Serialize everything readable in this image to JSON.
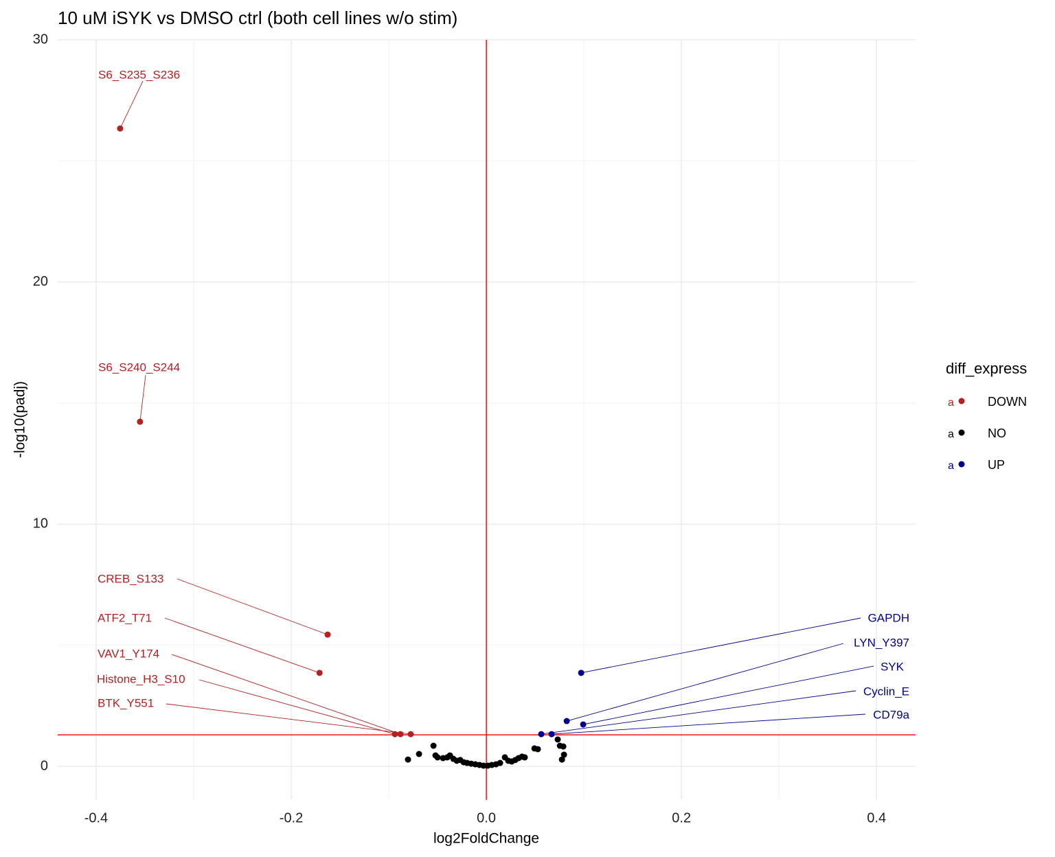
{
  "chart_data": {
    "type": "scatter",
    "title": "10 uM iSYK vs DMSO ctrl (both cell lines w/o stim)",
    "x_label": "log2FoldChange",
    "y_label": "-log10(padj)",
    "xlim": [
      -0.4394,
      0.44
    ],
    "ylim": [
      -1.39,
      30
    ],
    "xticks": [
      -0.4,
      -0.2,
      {
        "value": 0,
        "label": "0.0"
      },
      0.2,
      0.4
    ],
    "yticks": [
      0,
      10,
      20,
      30
    ],
    "x_minor_ticks": [
      -0.3,
      -0.1,
      0.1,
      0.3
    ],
    "y_minor_ticks": [
      5,
      15,
      25
    ],
    "grid": true,
    "hline": 1.3,
    "vline": 0,
    "threshold_color": "#e8141c",
    "legend_title": "diff_express",
    "legend_key_label": "a",
    "legend_position": "right",
    "series": [
      {
        "name": "DOWN",
        "color": "#b22222",
        "x": [
          -0.3754,
          -0.355,
          -0.1627,
          -0.171,
          -0.088,
          -0.0937,
          -0.0775
        ],
        "values": [
          26.34,
          14.23,
          5.44,
          3.86,
          1.33,
          1.33,
          1.33
        ],
        "labels": [
          "S6_S235_S236",
          "S6_S240_S244",
          "CREB_S133",
          "ATF2_T71",
          "VAV1_Y174",
          "Histone_H3_S10",
          "BTK_Y551"
        ]
      },
      {
        "name": "NO",
        "color": "#000000",
        "x": [
          -0.0542,
          -0.069,
          -0.0803,
          -0.0521,
          -0.05,
          -0.0444,
          -0.0401,
          -0.0373,
          -0.0338,
          -0.0303,
          -0.0268,
          -0.0232,
          -0.0197,
          -0.0155,
          -0.0113,
          -0.007,
          -0.0028,
          0.0014,
          0.0056,
          0.0099,
          0.0141,
          0.019,
          0.0225,
          0.026,
          0.0296,
          0.0331,
          0.0366,
          0.0394,
          0.0493,
          0.0528,
          0.0732,
          0.0754,
          0.0789,
          0.0796,
          0.0775
        ],
        "values": [
          0.85,
          0.51,
          0.28,
          0.45,
          0.37,
          0.34,
          0.37,
          0.45,
          0.31,
          0.23,
          0.26,
          0.17,
          0.14,
          0.11,
          0.085,
          0.057,
          0.028,
          0.028,
          0.057,
          0.085,
          0.14,
          0.37,
          0.23,
          0.2,
          0.26,
          0.34,
          0.4,
          0.37,
          0.74,
          0.71,
          1.11,
          0.85,
          0.82,
          0.48,
          0.28
        ]
      },
      {
        "name": "UP",
        "color": "#00008b",
        "x": [
          0.0972,
          0.0824,
          0.0993,
          0.0563,
          0.0669
        ],
        "values": [
          3.86,
          1.87,
          1.73,
          1.33,
          1.33
        ],
        "labels": [
          "GAPDH",
          "LYN_Y397",
          "SYK",
          "Cyclin_E",
          "CD79a"
        ]
      }
    ]
  }
}
